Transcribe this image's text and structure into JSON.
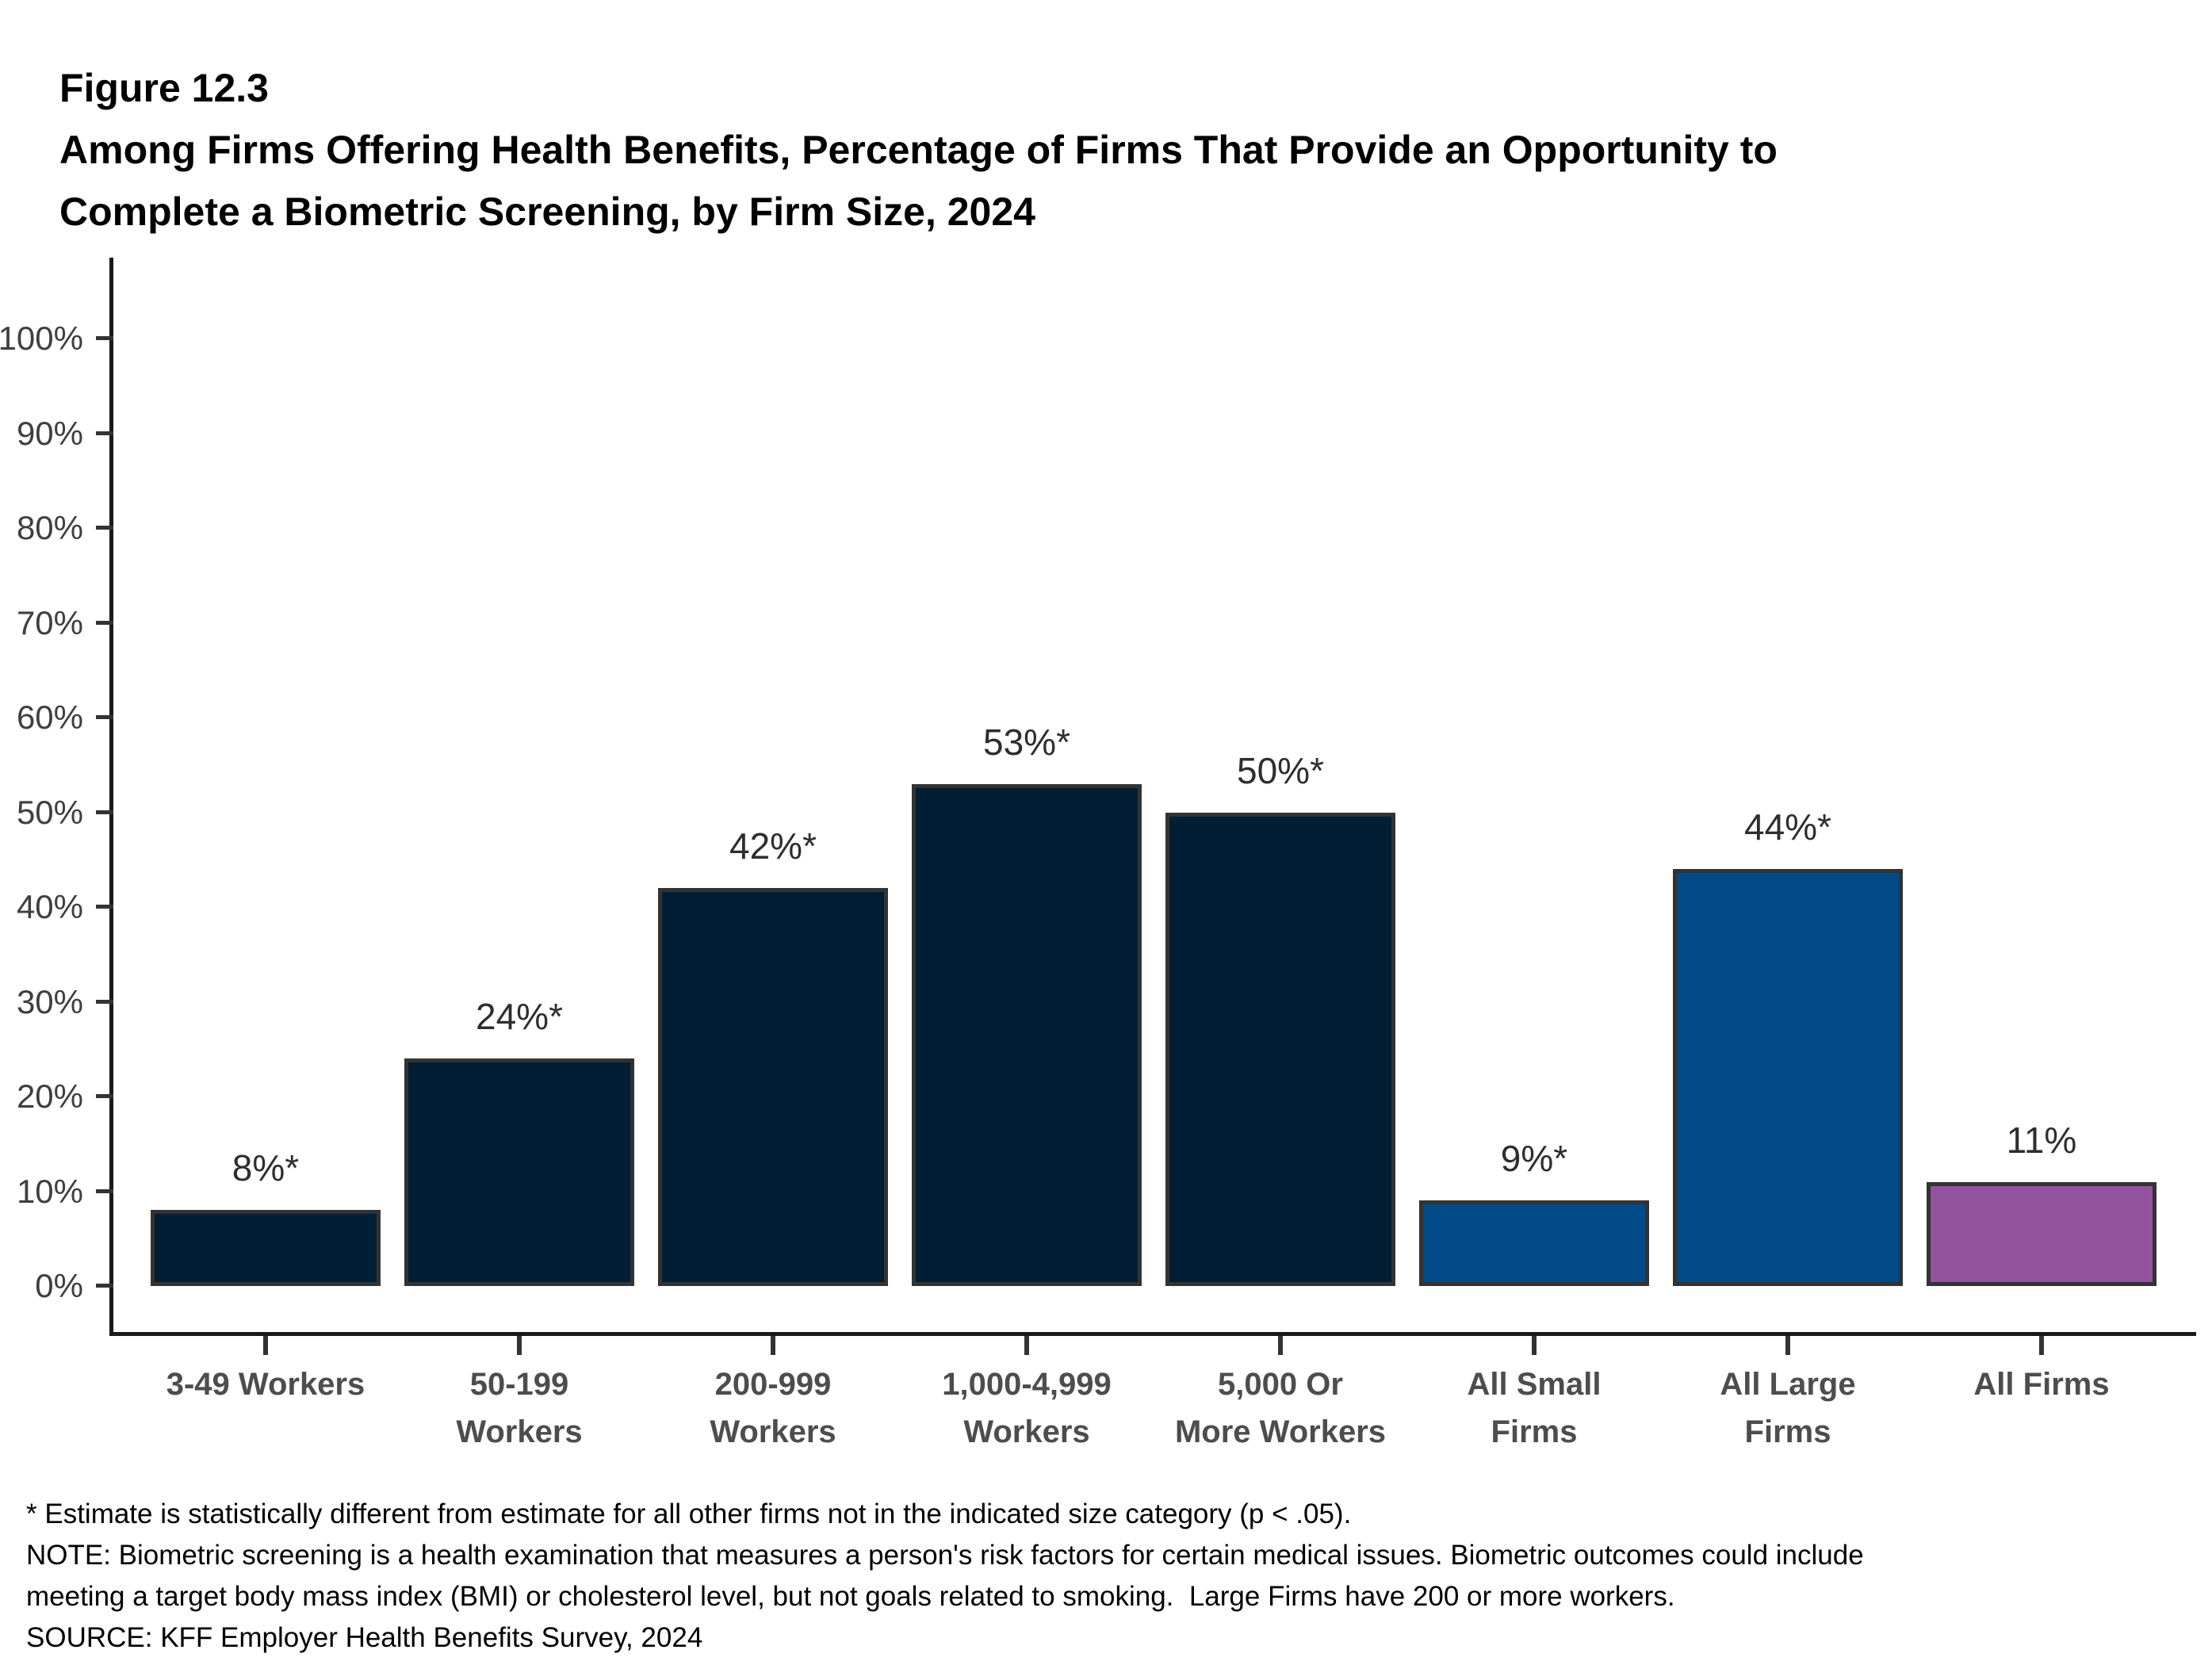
{
  "header": {
    "figure_label": "Figure 12.3",
    "title_lines": [
      "Among Firms Offering Health Benefits, Percentage of Firms That Provide an Opportunity to",
      "Complete a Biometric Screening, by Firm Size, 2024"
    ]
  },
  "chart_data": {
    "type": "bar",
    "title": "Among Firms Offering Health Benefits, Percentage of Firms That Provide an Opportunity to Complete a Biometric Screening, by Firm Size, 2024",
    "categories": [
      "3-49 Workers",
      "50-199\nWorkers",
      "200-999\nWorkers",
      "1,000-4,999\nWorkers",
      "5,000 Or\nMore Workers",
      "All Small\nFirms",
      "All Large\nFirms",
      "All Firms"
    ],
    "values": [
      8,
      24,
      42,
      53,
      50,
      9,
      44,
      11
    ],
    "value_labels": [
      "8%*",
      "24%*",
      "42%*",
      "53%*",
      "50%*",
      "9%*",
      "44%*",
      "11%"
    ],
    "bar_colors": [
      "#021E35",
      "#021E35",
      "#021E35",
      "#021E35",
      "#021E35",
      "#004B87",
      "#004B87",
      "#92529E"
    ],
    "bar_border_color": "#333333",
    "axis_color": "#1A1A1A",
    "xlabel": "",
    "ylabel": "",
    "ylim": [
      0,
      100
    ],
    "ytick_labels": [
      "0%",
      "10%",
      "20%",
      "30%",
      "40%",
      "50%",
      "60%",
      "70%",
      "80%",
      "90%",
      "100%"
    ],
    "grid": false,
    "legend": "none"
  },
  "footnotes": [
    "* Estimate is statistically different from estimate for all other firms not in the indicated size category (p < .05).",
    "NOTE: Biometric screening is a health examination that measures a person's risk factors for certain medical issues. Biometric outcomes could include",
    "meeting a target body mass index (BMI) or cholesterol level, but not goals related to smoking.  Large Firms have 200 or more workers.",
    "SOURCE: KFF Employer Health Benefits Survey, 2024"
  ]
}
